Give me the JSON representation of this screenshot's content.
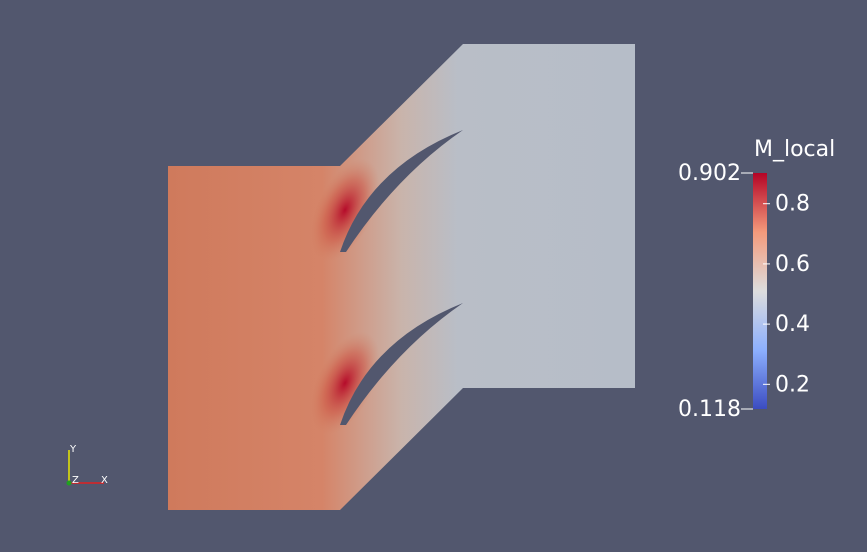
{
  "colorbar": {
    "title": "M_local",
    "lim": [
      0.118,
      0.902
    ],
    "ticks": [
      0.2,
      0.4,
      0.6,
      0.8
    ]
  },
  "axes_triad": {
    "y": "Y",
    "z": "Z",
    "x": "X"
  }
}
